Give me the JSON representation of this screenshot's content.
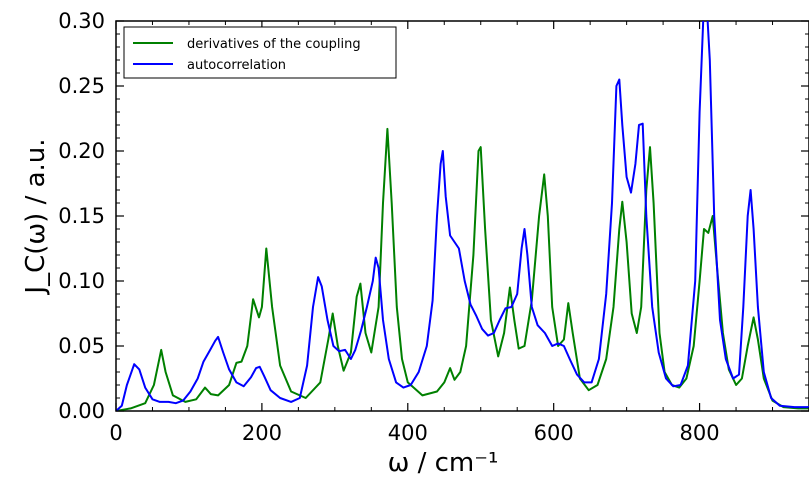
{
  "chart_data": {
    "type": "line",
    "xlabel": "ω / cm⁻¹",
    "ylabel": "J_C(ω) / a.u.",
    "xlim": [
      0,
      950
    ],
    "ylim": [
      0,
      0.3
    ],
    "xticks": [
      0,
      200,
      400,
      600,
      800
    ],
    "yticks": [
      0.0,
      0.05,
      0.1,
      0.15,
      0.2,
      0.25,
      0.3
    ],
    "xtick_labels": [
      "0",
      "200",
      "400",
      "600",
      "800"
    ],
    "ytick_labels": [
      "0.00",
      "0.05",
      "0.10",
      "0.15",
      "0.20",
      "0.25",
      "0.30"
    ],
    "grid": false,
    "legend_position": "top-left",
    "series": [
      {
        "name": "derivatives of the coupling",
        "color": "#008000",
        "points": [
          [
            0,
            0.0
          ],
          [
            20,
            0.002
          ],
          [
            40,
            0.006
          ],
          [
            52,
            0.02
          ],
          [
            62,
            0.047
          ],
          [
            68,
            0.03
          ],
          [
            78,
            0.012
          ],
          [
            95,
            0.007
          ],
          [
            110,
            0.009
          ],
          [
            122,
            0.018
          ],
          [
            130,
            0.013
          ],
          [
            140,
            0.012
          ],
          [
            155,
            0.02
          ],
          [
            165,
            0.037
          ],
          [
            172,
            0.038
          ],
          [
            180,
            0.05
          ],
          [
            188,
            0.086
          ],
          [
            196,
            0.072
          ],
          [
            200,
            0.08
          ],
          [
            206,
            0.125
          ],
          [
            214,
            0.08
          ],
          [
            225,
            0.035
          ],
          [
            240,
            0.015
          ],
          [
            260,
            0.01
          ],
          [
            280,
            0.022
          ],
          [
            291,
            0.055
          ],
          [
            297,
            0.075
          ],
          [
            304,
            0.05
          ],
          [
            312,
            0.031
          ],
          [
            322,
            0.045
          ],
          [
            330,
            0.088
          ],
          [
            335,
            0.098
          ],
          [
            342,
            0.06
          ],
          [
            350,
            0.045
          ],
          [
            360,
            0.08
          ],
          [
            366,
            0.16
          ],
          [
            372,
            0.217
          ],
          [
            378,
            0.16
          ],
          [
            385,
            0.08
          ],
          [
            392,
            0.04
          ],
          [
            400,
            0.022
          ],
          [
            420,
            0.012
          ],
          [
            440,
            0.015
          ],
          [
            450,
            0.022
          ],
          [
            458,
            0.033
          ],
          [
            464,
            0.024
          ],
          [
            472,
            0.03
          ],
          [
            480,
            0.05
          ],
          [
            490,
            0.12
          ],
          [
            497,
            0.2
          ],
          [
            500,
            0.203
          ],
          [
            506,
            0.14
          ],
          [
            514,
            0.07
          ],
          [
            524,
            0.042
          ],
          [
            532,
            0.06
          ],
          [
            540,
            0.095
          ],
          [
            546,
            0.07
          ],
          [
            552,
            0.048
          ],
          [
            560,
            0.05
          ],
          [
            570,
            0.085
          ],
          [
            580,
            0.15
          ],
          [
            587,
            0.182
          ],
          [
            592,
            0.15
          ],
          [
            598,
            0.08
          ],
          [
            606,
            0.05
          ],
          [
            614,
            0.055
          ],
          [
            620,
            0.083
          ],
          [
            626,
            0.06
          ],
          [
            636,
            0.025
          ],
          [
            648,
            0.016
          ],
          [
            660,
            0.02
          ],
          [
            672,
            0.04
          ],
          [
            682,
            0.08
          ],
          [
            690,
            0.14
          ],
          [
            694,
            0.161
          ],
          [
            700,
            0.13
          ],
          [
            707,
            0.075
          ],
          [
            714,
            0.06
          ],
          [
            720,
            0.08
          ],
          [
            727,
            0.17
          ],
          [
            732,
            0.203
          ],
          [
            737,
            0.16
          ],
          [
            745,
            0.06
          ],
          [
            752,
            0.03
          ],
          [
            762,
            0.02
          ],
          [
            772,
            0.018
          ],
          [
            782,
            0.025
          ],
          [
            792,
            0.05
          ],
          [
            800,
            0.1
          ],
          [
            806,
            0.14
          ],
          [
            812,
            0.137
          ],
          [
            818,
            0.15
          ],
          [
            824,
            0.11
          ],
          [
            832,
            0.06
          ],
          [
            840,
            0.032
          ],
          [
            850,
            0.02
          ],
          [
            858,
            0.025
          ],
          [
            866,
            0.05
          ],
          [
            874,
            0.072
          ],
          [
            880,
            0.055
          ],
          [
            888,
            0.025
          ],
          [
            900,
            0.008
          ],
          [
            915,
            0.003
          ],
          [
            935,
            0.002
          ],
          [
            950,
            0.002
          ]
        ]
      },
      {
        "name": "autocorrelation",
        "color": "#0000ff",
        "points": [
          [
            0,
            0.0
          ],
          [
            8,
            0.004
          ],
          [
            15,
            0.02
          ],
          [
            25,
            0.036
          ],
          [
            32,
            0.032
          ],
          [
            40,
            0.018
          ],
          [
            50,
            0.009
          ],
          [
            60,
            0.007
          ],
          [
            72,
            0.007
          ],
          [
            82,
            0.006
          ],
          [
            92,
            0.008
          ],
          [
            102,
            0.015
          ],
          [
            112,
            0.025
          ],
          [
            120,
            0.038
          ],
          [
            128,
            0.046
          ],
          [
            136,
            0.054
          ],
          [
            140,
            0.057
          ],
          [
            147,
            0.045
          ],
          [
            155,
            0.032
          ],
          [
            165,
            0.022
          ],
          [
            175,
            0.019
          ],
          [
            185,
            0.026
          ],
          [
            192,
            0.033
          ],
          [
            197,
            0.034
          ],
          [
            203,
            0.027
          ],
          [
            212,
            0.016
          ],
          [
            225,
            0.01
          ],
          [
            240,
            0.007
          ],
          [
            252,
            0.01
          ],
          [
            262,
            0.035
          ],
          [
            270,
            0.08
          ],
          [
            277,
            0.103
          ],
          [
            282,
            0.096
          ],
          [
            290,
            0.07
          ],
          [
            298,
            0.05
          ],
          [
            306,
            0.046
          ],
          [
            314,
            0.047
          ],
          [
            322,
            0.04
          ],
          [
            328,
            0.047
          ],
          [
            336,
            0.062
          ],
          [
            344,
            0.08
          ],
          [
            352,
            0.1
          ],
          [
            356,
            0.118
          ],
          [
            360,
            0.11
          ],
          [
            366,
            0.07
          ],
          [
            374,
            0.04
          ],
          [
            384,
            0.022
          ],
          [
            394,
            0.018
          ],
          [
            404,
            0.02
          ],
          [
            415,
            0.03
          ],
          [
            426,
            0.05
          ],
          [
            434,
            0.085
          ],
          [
            440,
            0.15
          ],
          [
            445,
            0.19
          ],
          [
            448,
            0.2
          ],
          [
            452,
            0.165
          ],
          [
            458,
            0.135
          ],
          [
            464,
            0.13
          ],
          [
            470,
            0.125
          ],
          [
            478,
            0.1
          ],
          [
            486,
            0.082
          ],
          [
            494,
            0.073
          ],
          [
            502,
            0.063
          ],
          [
            510,
            0.058
          ],
          [
            518,
            0.06
          ],
          [
            526,
            0.07
          ],
          [
            534,
            0.079
          ],
          [
            542,
            0.08
          ],
          [
            550,
            0.09
          ],
          [
            556,
            0.125
          ],
          [
            560,
            0.14
          ],
          [
            564,
            0.12
          ],
          [
            570,
            0.08
          ],
          [
            578,
            0.066
          ],
          [
            588,
            0.06
          ],
          [
            598,
            0.05
          ],
          [
            606,
            0.052
          ],
          [
            614,
            0.05
          ],
          [
            622,
            0.04
          ],
          [
            632,
            0.028
          ],
          [
            642,
            0.022
          ],
          [
            652,
            0.022
          ],
          [
            662,
            0.04
          ],
          [
            672,
            0.09
          ],
          [
            680,
            0.16
          ],
          [
            686,
            0.25
          ],
          [
            690,
            0.255
          ],
          [
            694,
            0.22
          ],
          [
            700,
            0.18
          ],
          [
            706,
            0.168
          ],
          [
            712,
            0.19
          ],
          [
            717,
            0.22
          ],
          [
            722,
            0.221
          ],
          [
            727,
            0.15
          ],
          [
            735,
            0.08
          ],
          [
            744,
            0.045
          ],
          [
            754,
            0.025
          ],
          [
            764,
            0.019
          ],
          [
            774,
            0.02
          ],
          [
            784,
            0.035
          ],
          [
            794,
            0.1
          ],
          [
            800,
            0.23
          ],
          [
            805,
            0.3
          ],
          [
            810,
            0.31
          ],
          [
            814,
            0.27
          ],
          [
            820,
            0.15
          ],
          [
            828,
            0.07
          ],
          [
            836,
            0.04
          ],
          [
            846,
            0.025
          ],
          [
            854,
            0.028
          ],
          [
            860,
            0.08
          ],
          [
            866,
            0.15
          ],
          [
            870,
            0.17
          ],
          [
            874,
            0.14
          ],
          [
            880,
            0.08
          ],
          [
            888,
            0.03
          ],
          [
            898,
            0.01
          ],
          [
            910,
            0.004
          ],
          [
            930,
            0.003
          ],
          [
            950,
            0.003
          ]
        ]
      }
    ]
  }
}
